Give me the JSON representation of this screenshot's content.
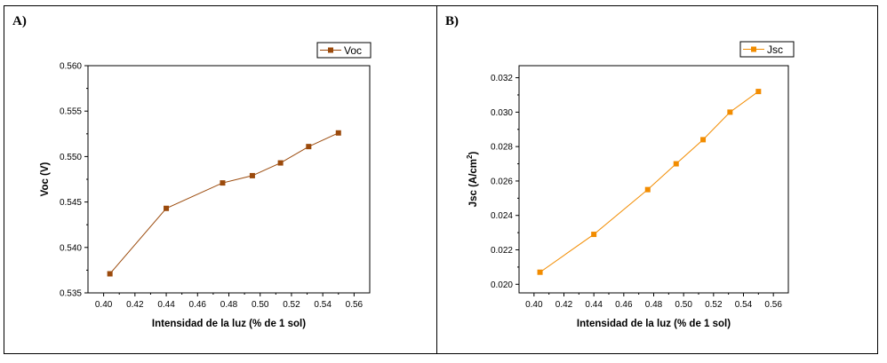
{
  "chart_data": [
    {
      "panel_label": "A)",
      "type": "line",
      "title": "",
      "xlabel": "Intensidad de la luz (% de 1 sol)",
      "ylabel": "Voc (V)",
      "xlim": [
        0.39,
        0.57
      ],
      "ylim": [
        0.535,
        0.56
      ],
      "xticks": [
        "0.40",
        "0.42",
        "0.44",
        "0.46",
        "0.48",
        "0.50",
        "0.52",
        "0.54",
        "0.56"
      ],
      "yticks": [
        "0.535",
        "0.540",
        "0.545",
        "0.550",
        "0.555",
        "0.560"
      ],
      "grid": false,
      "legend_position": "top-right",
      "series": [
        {
          "name": "Voc",
          "color": "#9b4a0c",
          "marker": "square",
          "x": [
            0.404,
            0.44,
            0.476,
            0.495,
            0.513,
            0.531,
            0.55
          ],
          "y": [
            0.5371,
            0.5443,
            0.5471,
            0.5479,
            0.5493,
            0.5511,
            0.5526
          ]
        }
      ]
    },
    {
      "panel_label": "B)",
      "type": "line",
      "title": "",
      "xlabel": "Intensidad de la luz (% de 1 sol)",
      "ylabel": "Jsc (A/cm",
      "ylabel_sup": "2",
      "ylabel_end": ")",
      "xlim": [
        0.39,
        0.57
      ],
      "ylim": [
        0.0195,
        0.0327
      ],
      "xticks": [
        "0.40",
        "0.42",
        "0.44",
        "0.46",
        "0.48",
        "0.50",
        "0.52",
        "0.54",
        "0.56"
      ],
      "yticks": [
        "0.020",
        "0.022",
        "0.024",
        "0.026",
        "0.028",
        "0.030",
        "0.032"
      ],
      "grid": false,
      "legend_position": "top-right",
      "series": [
        {
          "name": "Jsc",
          "color": "#f28c00",
          "marker": "square",
          "x": [
            0.404,
            0.44,
            0.476,
            0.495,
            0.513,
            0.531,
            0.55
          ],
          "y": [
            0.0207,
            0.0229,
            0.0255,
            0.027,
            0.0284,
            0.03,
            0.0312
          ]
        }
      ]
    }
  ]
}
